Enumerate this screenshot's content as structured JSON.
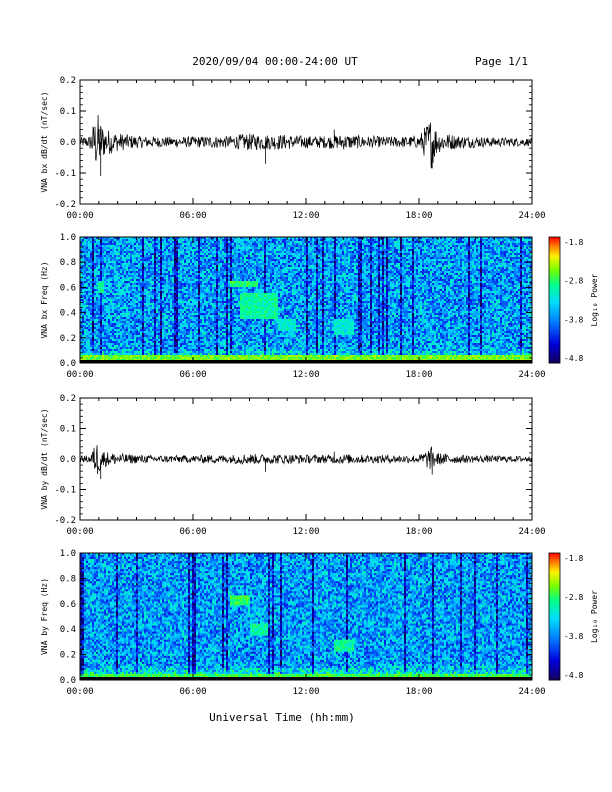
{
  "header": {
    "title": "2020/09/04  00:00-24:00 UT",
    "page": "Page 1/1"
  },
  "xlabel": "Universal Time (hh:mm)",
  "x_ticks": [
    "00:00",
    "06:00",
    "12:00",
    "18:00",
    "24:00"
  ],
  "colorbar": {
    "label": "Log₁₀ Power",
    "ticks": [
      "-1.8",
      "-2.8",
      "-3.8",
      "-4.8"
    ],
    "range": [
      -4.8,
      -1.8
    ],
    "colors": [
      "#000000",
      "#4b0096",
      "#0000ff",
      "#00a0ff",
      "#00ffff",
      "#00ff60",
      "#80ff00",
      "#ffff00",
      "#ff8000",
      "#ff0000"
    ]
  },
  "chart_data": [
    {
      "type": "line",
      "ylabel": "VNA bx dB/dt (nT/sec)",
      "y_ticks": [
        "0.2",
        "0.1",
        "0.0",
        "-0.1",
        "-0.2"
      ],
      "ylim": [
        -0.2,
        0.2
      ],
      "xlim": [
        "00:00",
        "24:00"
      ],
      "series": [
        {
          "x": [
            "00:00",
            "00:30",
            "00:55",
            "01:05",
            "01:20",
            "02:00",
            "03:00",
            "04:00",
            "05:00",
            "06:00",
            "07:00",
            "08:00",
            "08:50",
            "09:30",
            "10:30",
            "11:30",
            "12:00",
            "13:00",
            "14:00",
            "15:00",
            "16:00",
            "17:00",
            "18:00",
            "18:40",
            "19:00",
            "20:00",
            "21:00",
            "22:00",
            "23:00",
            "24:00"
          ],
          "y_env": [
            0.015,
            0.02,
            0.1,
            0.07,
            0.045,
            0.03,
            0.02,
            0.018,
            0.016,
            0.018,
            0.02,
            0.02,
            0.028,
            0.025,
            0.025,
            0.022,
            0.02,
            0.02,
            0.025,
            0.02,
            0.018,
            0.018,
            0.02,
            0.085,
            0.035,
            0.022,
            0.018,
            0.015,
            0.014,
            0.012
          ]
        }
      ]
    },
    {
      "type": "heatmap",
      "ylabel": "VNA bx Freq (Hz)",
      "y_ticks": [
        "1.0",
        "0.8",
        "0.6",
        "0.4",
        "0.2",
        "0.0"
      ],
      "ylim": [
        0.0,
        1.0
      ],
      "xlim": [
        "00:00",
        "24:00"
      ],
      "features": [
        {
          "time": "08:00-09:30",
          "freq_hz": [
            0.6,
            0.65
          ],
          "log_power": -2.6
        },
        {
          "time": "08:30-10:30",
          "freq_hz": [
            0.35,
            0.55
          ],
          "log_power": -2.8
        },
        {
          "time": "10:30-11:30",
          "freq_hz": [
            0.25,
            0.35
          ],
          "log_power": -3.0
        },
        {
          "time": "13:30-14:30",
          "freq_hz": [
            0.22,
            0.35
          ],
          "log_power": -3.0
        },
        {
          "time": "00:00-24:00",
          "freq_hz": [
            0.0,
            0.06
          ],
          "log_power": -2.4
        },
        {
          "time": "01:00-01:15",
          "freq_hz": [
            0.55,
            0.65
          ],
          "log_power": -2.8
        }
      ]
    },
    {
      "type": "line",
      "ylabel": "VNA by dB/dt (nT/sec)",
      "y_ticks": [
        "0.2",
        "0.1",
        "0.0",
        "-0.1",
        "-0.2"
      ],
      "ylim": [
        -0.2,
        0.2
      ],
      "xlim": [
        "00:00",
        "24:00"
      ],
      "series": [
        {
          "x": [
            "00:00",
            "00:30",
            "00:55",
            "01:05",
            "01:20",
            "02:00",
            "03:00",
            "04:00",
            "05:00",
            "06:00",
            "07:00",
            "08:00",
            "08:50",
            "09:30",
            "10:30",
            "11:30",
            "12:00",
            "13:00",
            "14:00",
            "15:00",
            "16:00",
            "17:00",
            "18:00",
            "18:40",
            "19:00",
            "20:00",
            "21:00",
            "22:00",
            "23:00",
            "24:00"
          ],
          "y_env": [
            0.01,
            0.012,
            0.06,
            0.04,
            0.025,
            0.018,
            0.014,
            0.012,
            0.012,
            0.012,
            0.014,
            0.014,
            0.018,
            0.016,
            0.016,
            0.015,
            0.014,
            0.014,
            0.016,
            0.014,
            0.013,
            0.013,
            0.014,
            0.04,
            0.02,
            0.014,
            0.012,
            0.011,
            0.01,
            0.01
          ]
        }
      ]
    },
    {
      "type": "heatmap",
      "ylabel": "VNA by Freq (Hz)",
      "y_ticks": [
        "1.0",
        "0.8",
        "0.6",
        "0.4",
        "0.2",
        "0.0"
      ],
      "ylim": [
        0.0,
        1.0
      ],
      "xlim": [
        "00:00",
        "24:00"
      ],
      "features": [
        {
          "time": "08:00-09:00",
          "freq_hz": [
            0.58,
            0.66
          ],
          "log_power": -2.6
        },
        {
          "time": "09:00-10:00",
          "freq_hz": [
            0.35,
            0.45
          ],
          "log_power": -2.8
        },
        {
          "time": "13:30-14:30",
          "freq_hz": [
            0.22,
            0.32
          ],
          "log_power": -2.8
        },
        {
          "time": "00:00-24:00",
          "freq_hz": [
            0.0,
            0.05
          ],
          "log_power": -2.6
        }
      ]
    }
  ]
}
